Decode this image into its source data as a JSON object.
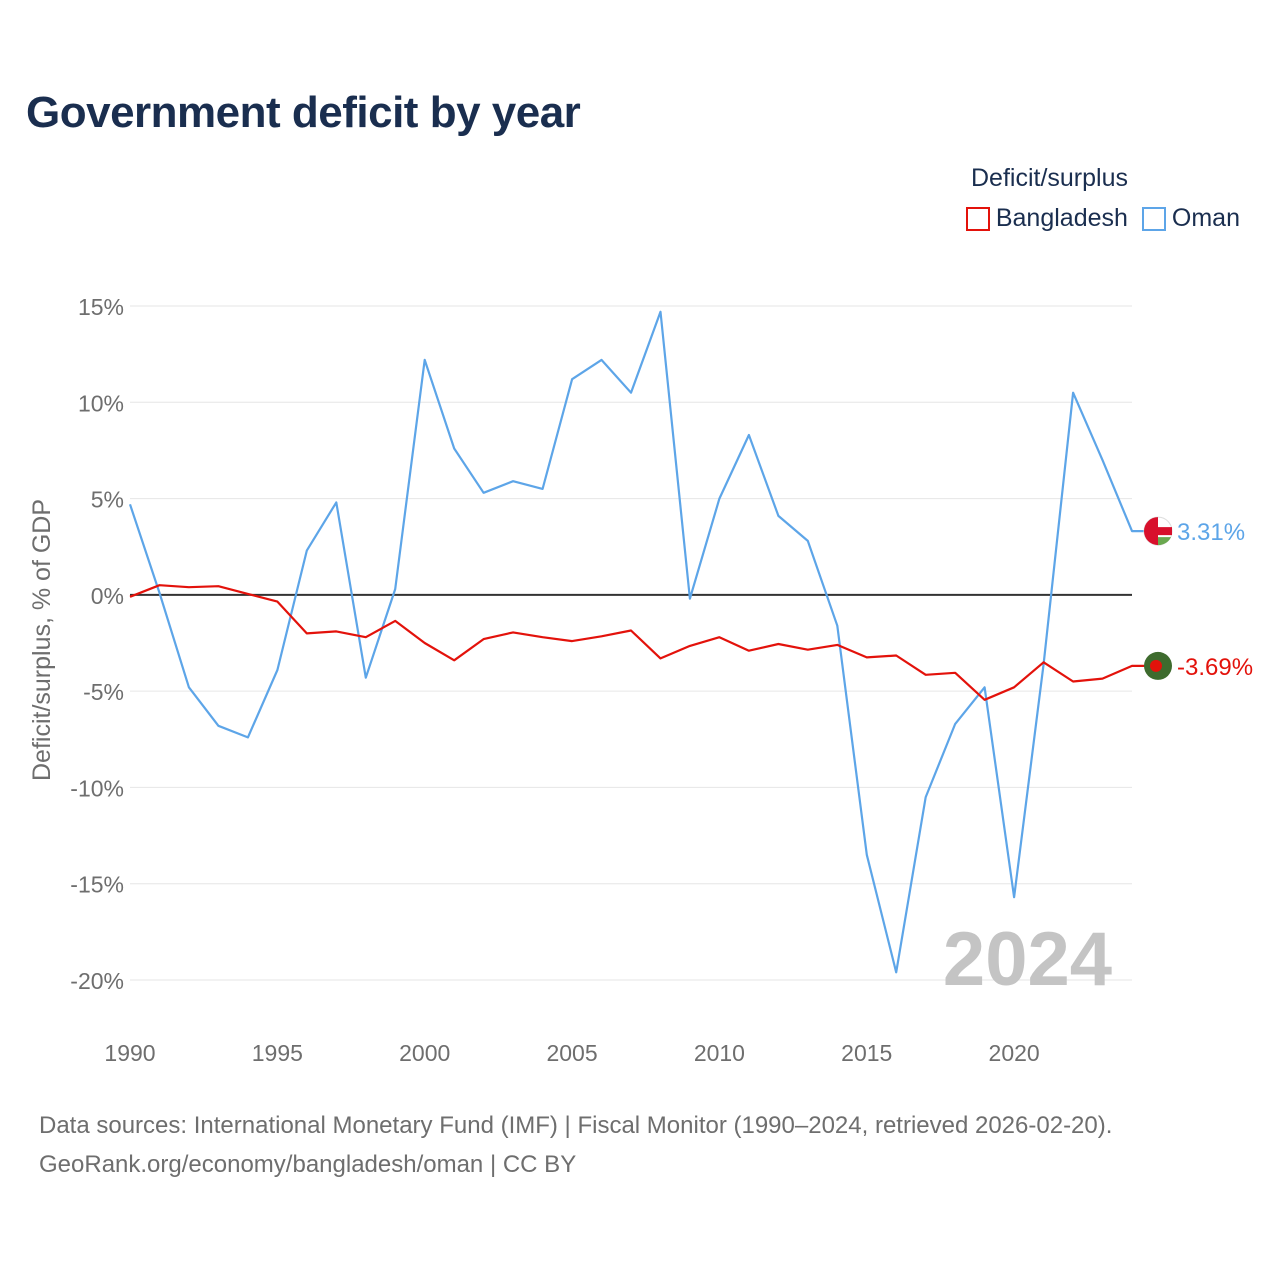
{
  "title": "Government deficit by year",
  "legend": {
    "title": "Deficit/surplus",
    "items": [
      {
        "label": "Bangladesh",
        "color": "#e3120b"
      },
      {
        "label": "Oman",
        "color": "#5da5e8"
      }
    ]
  },
  "footer": {
    "line1": "Data sources: International Monetary Fund (IMF) | Fiscal Monitor (1990–2024, retrieved 2026-02-20).",
    "line2": "GeoRank.org/economy/bangladesh/oman | CC BY"
  },
  "chart_data": {
    "type": "line",
    "title": "Government deficit by year",
    "xlabel": "",
    "ylabel": "Deficit/surplus, % of GDP",
    "xlim": [
      1990,
      2024
    ],
    "ylim": [
      -21.5,
      15.5
    ],
    "xticks": [
      1990,
      1995,
      2000,
      2005,
      2010,
      2015,
      2020
    ],
    "yticks": [
      15,
      10,
      5,
      0,
      -5,
      -10,
      -15,
      -20
    ],
    "ytick_labels": [
      "15%",
      "10%",
      "5%",
      "0%",
      "-5%",
      "-10%",
      "-15%",
      "-20%"
    ],
    "watermark_year": "2024",
    "x": [
      1990,
      1991,
      1992,
      1993,
      1994,
      1995,
      1996,
      1997,
      1998,
      1999,
      2000,
      2001,
      2002,
      2003,
      2004,
      2005,
      2006,
      2007,
      2008,
      2009,
      2010,
      2011,
      2012,
      2013,
      2014,
      2015,
      2016,
      2017,
      2018,
      2019,
      2020,
      2021,
      2022,
      2023,
      2024
    ],
    "series": [
      {
        "name": "Bangladesh",
        "color": "#e3120b",
        "end_label": "-3.69%",
        "values": [
          -0.1,
          0.5,
          0.4,
          0.45,
          0.05,
          -0.35,
          -2.0,
          -1.9,
          -2.2,
          -1.35,
          -2.5,
          -3.4,
          -2.3,
          -1.95,
          -2.2,
          -2.4,
          -2.15,
          -1.85,
          -3.3,
          -2.65,
          -2.2,
          -2.9,
          -2.55,
          -2.85,
          -2.6,
          -3.25,
          -3.15,
          -4.15,
          -4.05,
          -5.45,
          -4.8,
          -3.5,
          -4.5,
          -4.35,
          -3.69
        ]
      },
      {
        "name": "Oman",
        "color": "#5da5e8",
        "end_label": "3.31%",
        "values": [
          4.7,
          0.1,
          -4.8,
          -6.8,
          -7.4,
          -3.9,
          2.3,
          4.8,
          -4.3,
          0.3,
          12.2,
          7.6,
          5.3,
          5.9,
          5.5,
          11.2,
          12.2,
          10.5,
          14.7,
          -0.2,
          5.0,
          8.3,
          4.1,
          2.8,
          -1.6,
          -13.5,
          -19.6,
          -10.5,
          -6.7,
          -4.8,
          -15.7,
          -3.6,
          10.5,
          7.0,
          3.31
        ]
      }
    ]
  }
}
